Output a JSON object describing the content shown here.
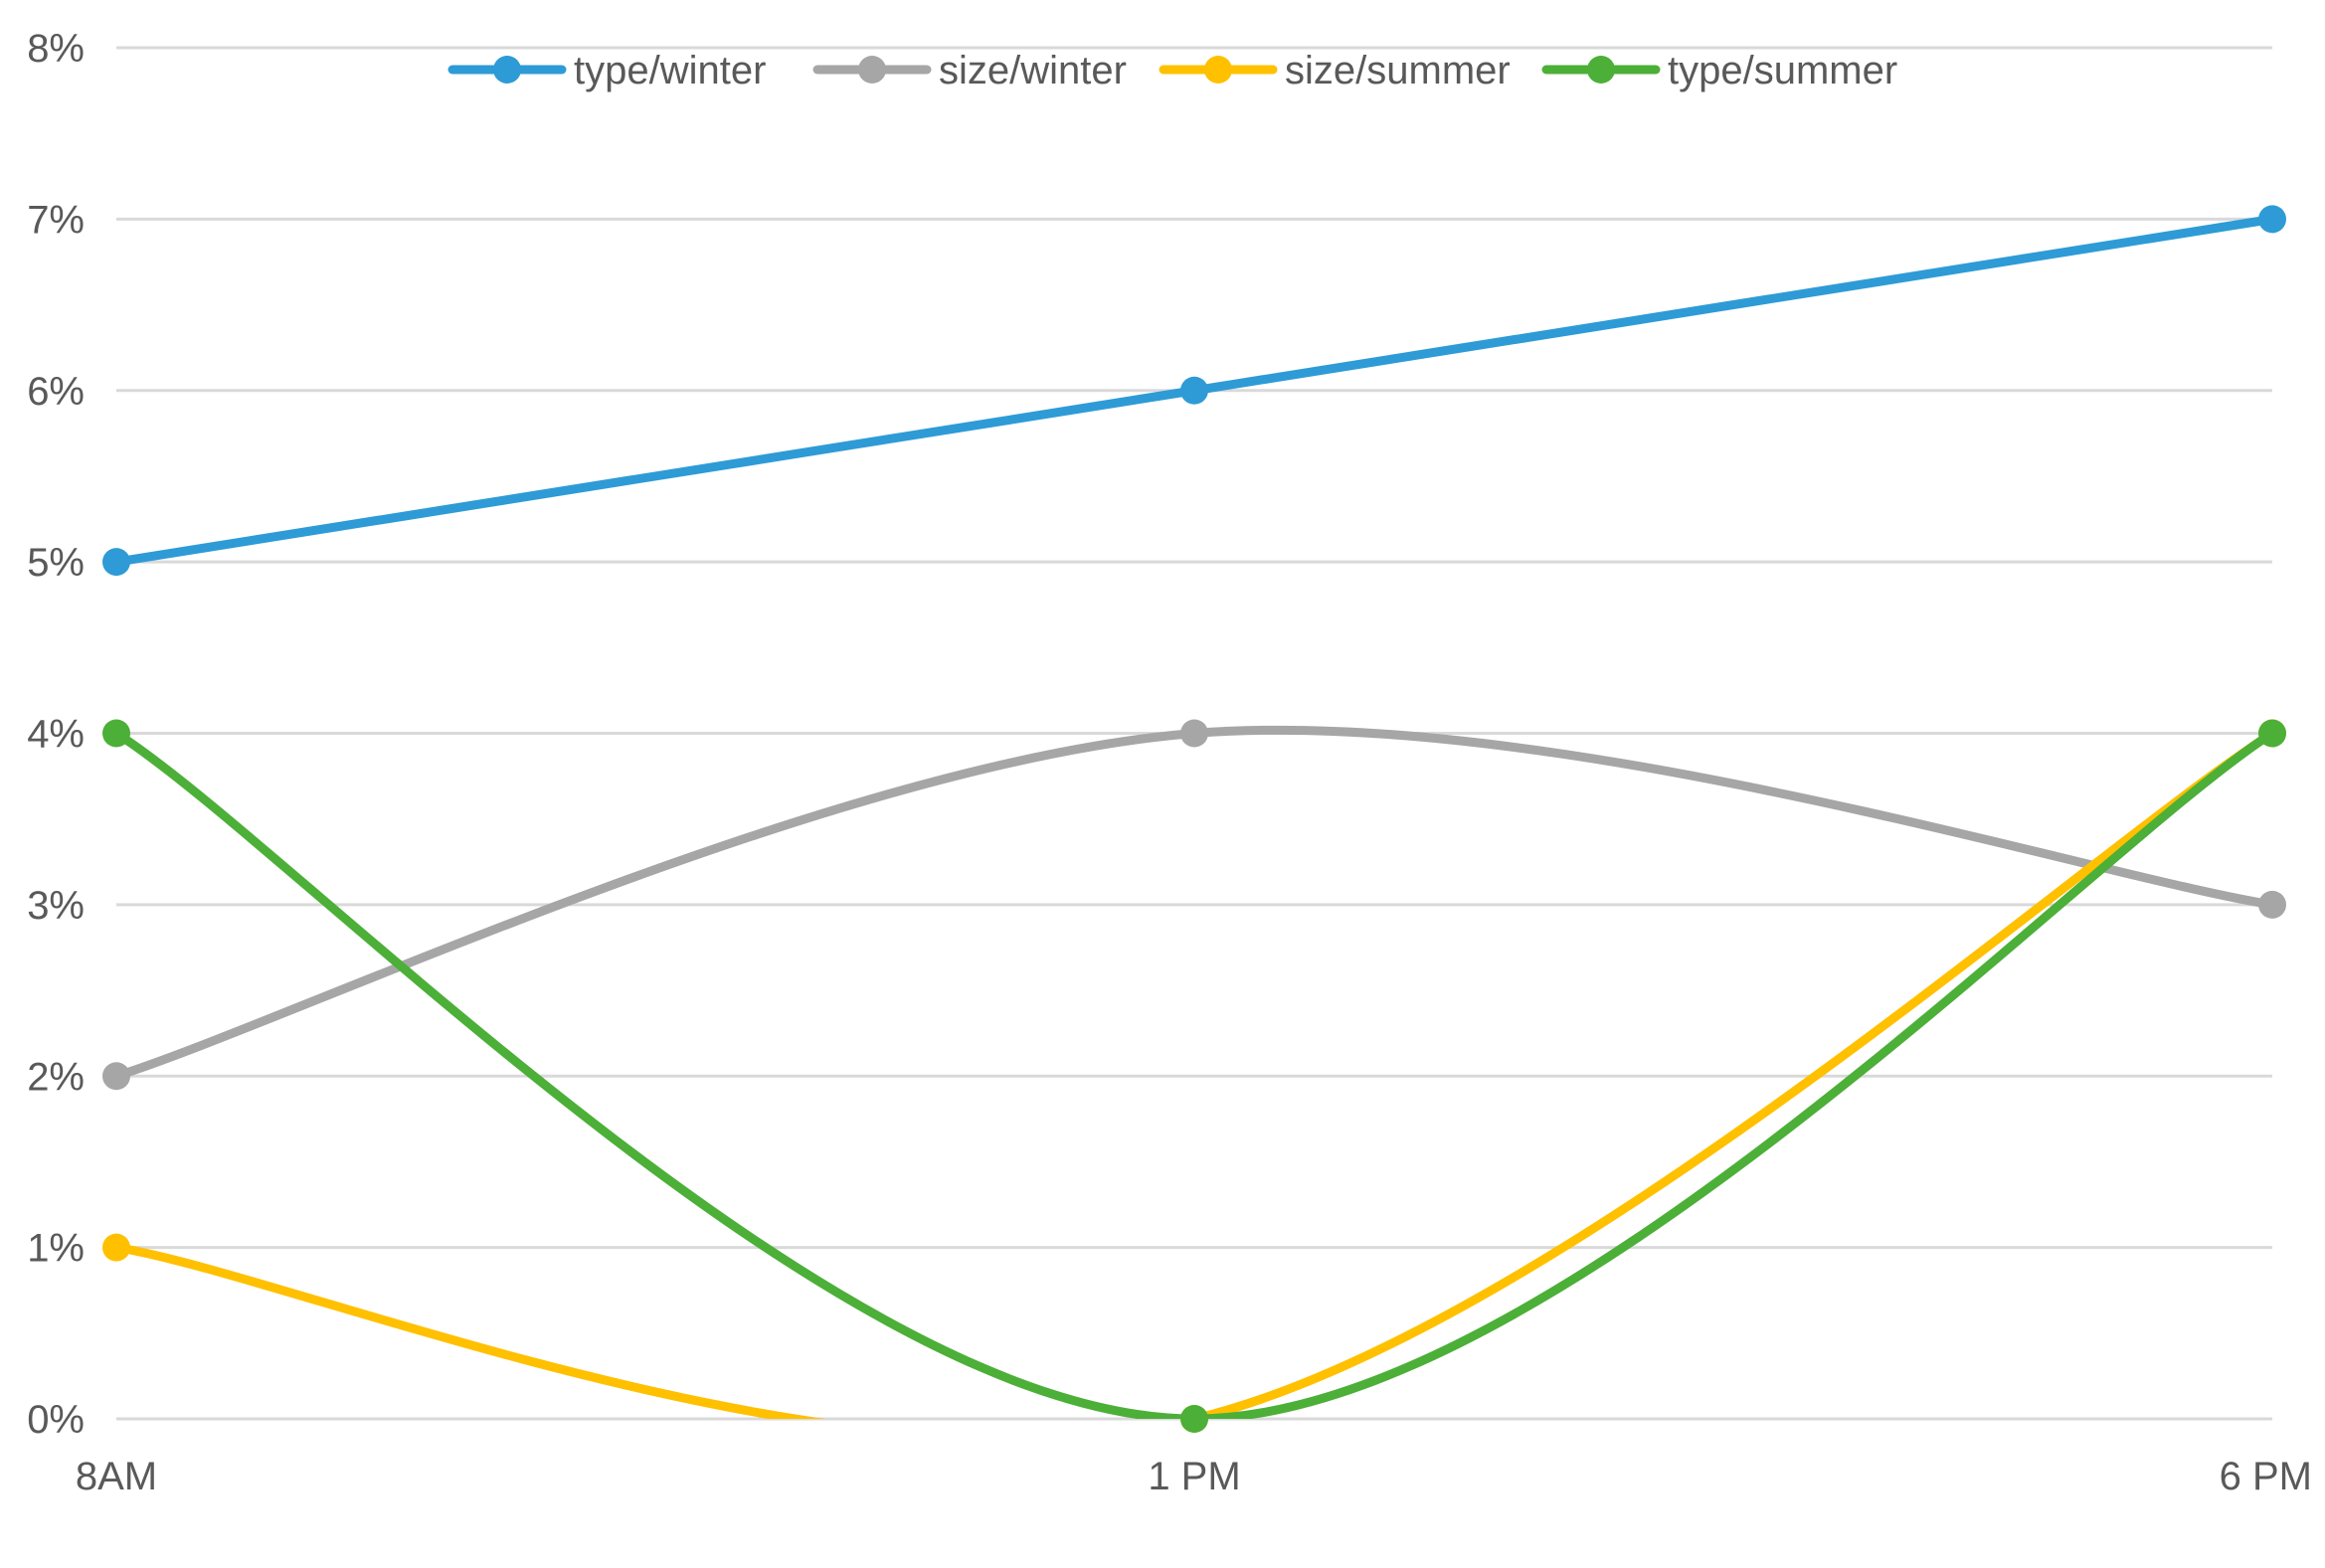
{
  "chart_data": {
    "type": "line",
    "smooth": true,
    "categories": [
      "8AM",
      "1 PM",
      "6 PM"
    ],
    "y_tick_labels": [
      "0%",
      "1%",
      "2%",
      "3%",
      "4%",
      "5%",
      "6%",
      "7%",
      "8%"
    ],
    "ylim": [
      0,
      8
    ],
    "y_unit": "%",
    "grid": true,
    "legend_position": "top",
    "series": [
      {
        "name": "type/winter",
        "color": "#2e9bd6",
        "values": [
          5,
          6,
          7
        ]
      },
      {
        "name": "size/winter",
        "color": "#a6a6a6",
        "values": [
          2,
          4,
          3
        ]
      },
      {
        "name": "size/summer",
        "color": "#ffc000",
        "values": [
          1,
          0,
          4
        ]
      },
      {
        "name": "type/summer",
        "color": "#4caf38",
        "values": [
          4,
          0,
          4
        ]
      }
    ]
  }
}
